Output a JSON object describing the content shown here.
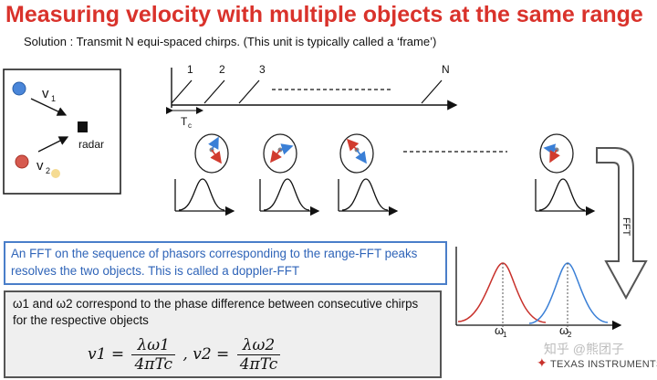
{
  "slide": {
    "title": "Measuring velocity with multiple objects at the same range",
    "subtitle": "Solution : Transmit N equi-spaced chirps. (This unit is typically called a ‘frame’)"
  },
  "scene": {
    "v1_label": "v",
    "v1_sub": "1",
    "v2_label": "v",
    "v2_sub": "2",
    "radar_label": "radar"
  },
  "chirps": {
    "labels": [
      "1",
      "2",
      "3",
      "N"
    ],
    "tc_label": "T",
    "tc_sub": "c"
  },
  "fft_label": "FFT",
  "doppler": {
    "w1_label": "ω",
    "w1_sub": "1",
    "w2_label": "ω",
    "w2_sub": "2"
  },
  "blue_box": {
    "text": "An FFT on the sequence of phasors corresponding to the range-FFT peaks resolves the two objects. This is called a doppler-FFT"
  },
  "gray_box": {
    "text": "ω1 and ω2 correspond to the phase difference between consecutive chirps for the respective objects",
    "eq_v1": "v1 =",
    "eq_num1": "λω1",
    "eq_den1": "4πTc",
    "eq_sep": ", v2 =",
    "eq_num2": "λω2",
    "eq_den2": "4πTc"
  },
  "watermark": "知乎 @熊团子",
  "logo": "TEXAS INSTRUMENTS",
  "colors": {
    "title": "#d9322b",
    "blue": "#2f64b8",
    "red": "#c8312b",
    "box_border": "#4a7ec9"
  }
}
